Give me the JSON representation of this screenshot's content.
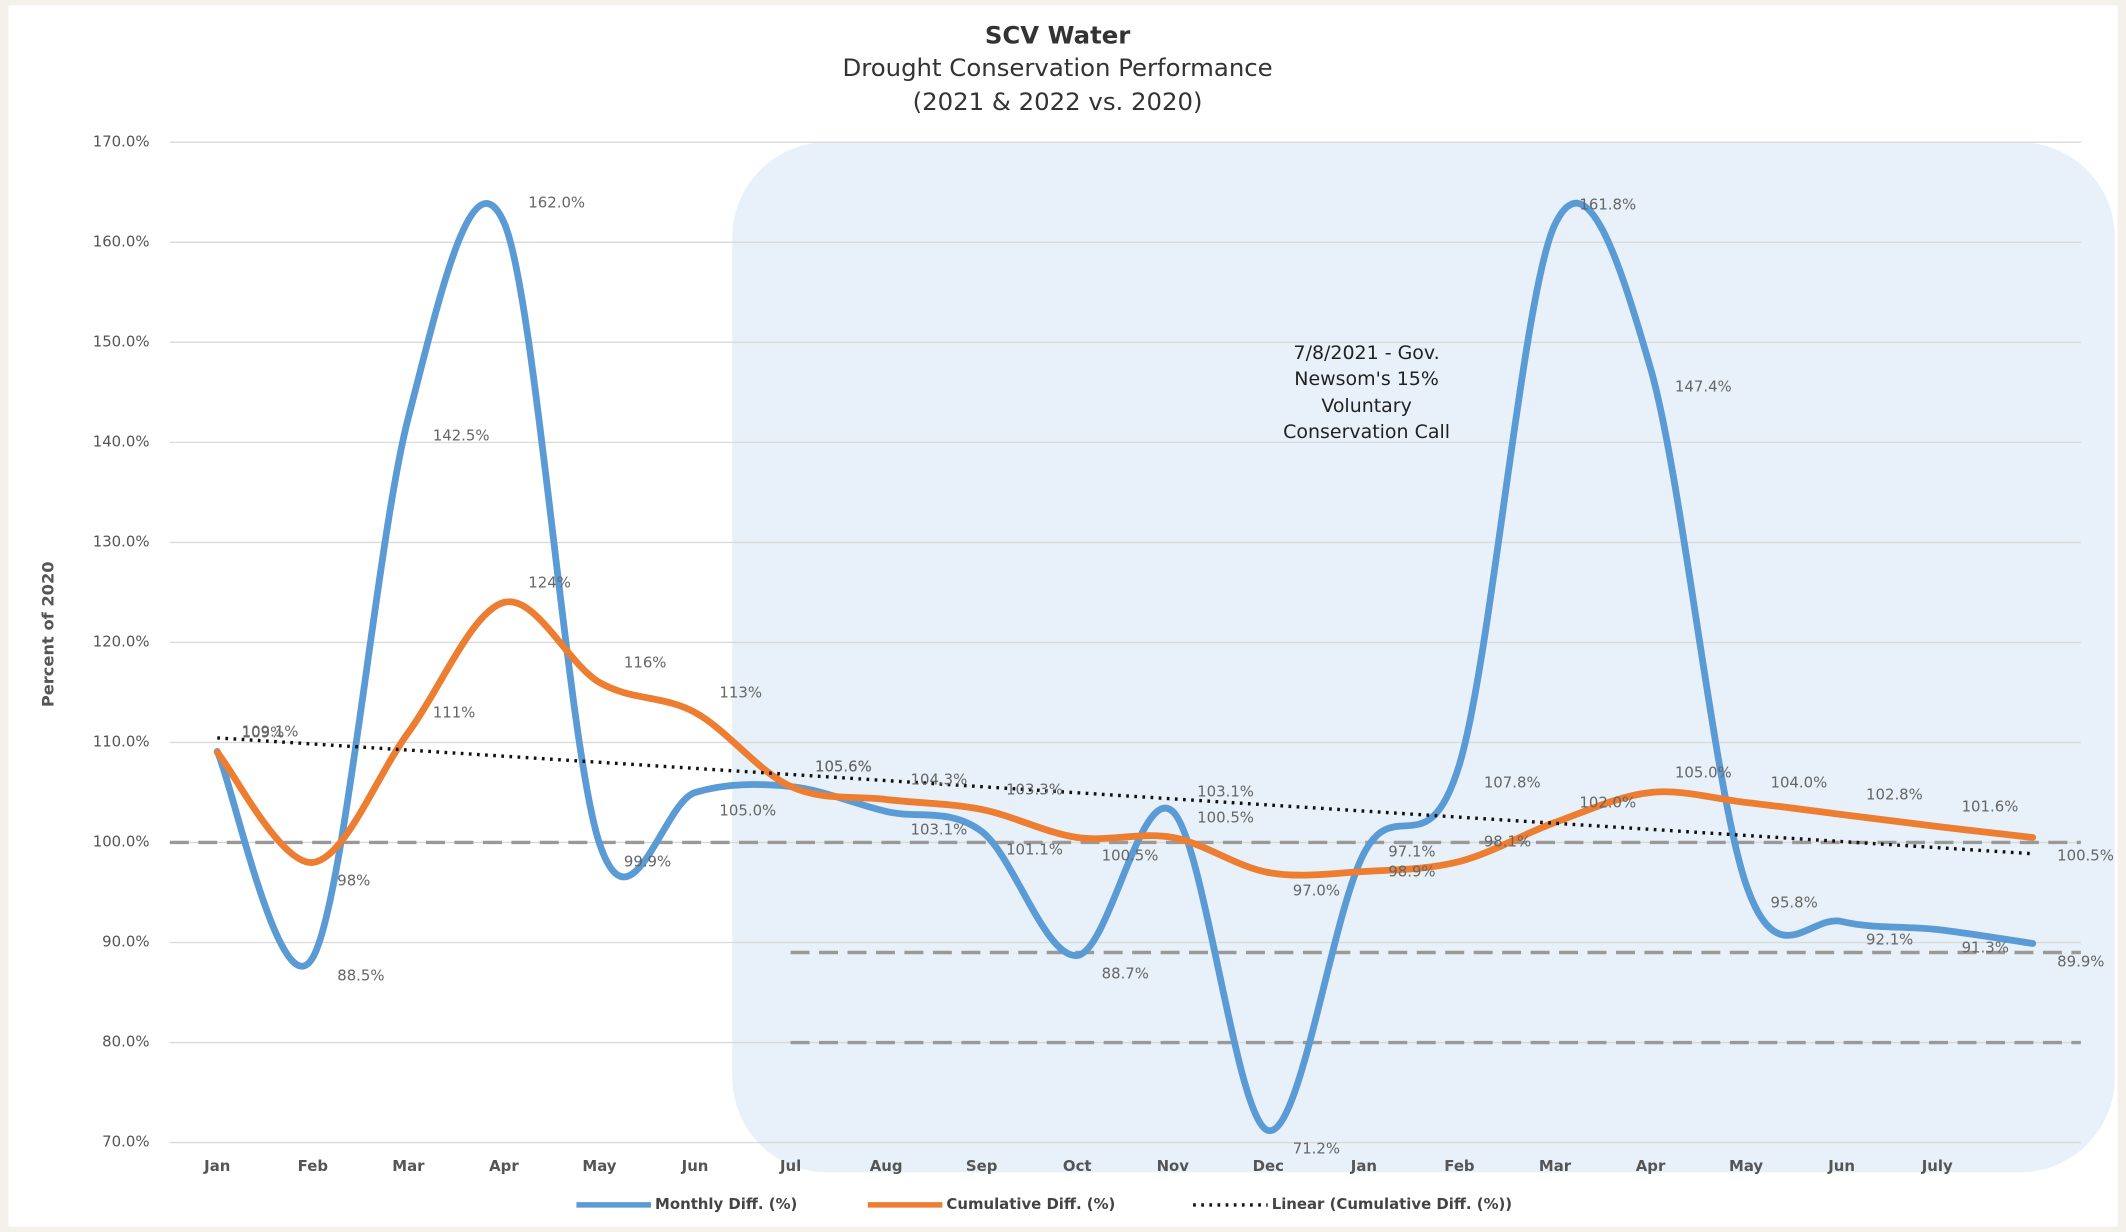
{
  "chart_data": {
    "type": "line",
    "title": "SCV Water",
    "subtitle": [
      "Drought Conservation Performance",
      "(2021 & 2022 vs. 2020)"
    ],
    "y_label": "Percent of 2020",
    "annotation": [
      "7/8/2021 - Gov.",
      "Newsom's 15%",
      "Voluntary",
      "Conservation Call"
    ],
    "categories": [
      "Jan",
      "Feb",
      "Mar",
      "Apr",
      "May",
      "Jun",
      "Jul",
      "Aug",
      "Sep",
      "Oct",
      "Nov",
      "Dec",
      "Jan",
      "Feb",
      "Mar",
      "Apr",
      "May",
      "Jun",
      "July",
      null
    ],
    "series": [
      {
        "name": "Monthly Diff. (%)",
        "color": "#5b9bd5",
        "values": [
          109.1,
          88.5,
          142.5,
          162.0,
          99.9,
          105.0,
          105.6,
          103.1,
          101.1,
          88.7,
          103.1,
          71.2,
          98.9,
          107.8,
          161.8,
          147.4,
          95.8,
          92.1,
          91.3,
          89.9
        ],
        "value_labels": [
          "109.1%",
          "88.5%",
          "142.5%",
          "162.0%",
          "99.9%",
          "105.0%",
          "105.6%",
          "103.1%",
          "101.1%",
          "88.7%",
          "103.1%",
          "71.2%",
          "98.9%",
          "107.8%",
          "161.8%",
          "147.4%",
          "95.8%",
          "92.1%",
          "91.3%",
          "89.9%"
        ]
      },
      {
        "name": "Cumulative Diff. (%)",
        "color": "#ed7d31",
        "values": [
          109,
          98,
          111,
          124,
          116,
          113,
          105.6,
          104.3,
          103.3,
          100.5,
          100.5,
          97.0,
          97.1,
          98.1,
          102.0,
          105.0,
          104.0,
          102.8,
          101.6,
          100.5
        ],
        "value_labels": [
          "109%",
          "98%",
          "111%",
          "124%",
          "116%",
          "113%",
          "105.6%",
          "104.3%",
          "103.3%",
          "100.5%",
          "100.5%",
          "97.0%",
          "97.1%",
          "98.1%",
          "102.0%",
          "105.0%",
          "104.0%",
          "102.8%",
          "101.6%",
          "100.5%"
        ]
      }
    ],
    "trendline": {
      "name": "Linear (Cumulative Diff. (%))",
      "color": "#111111",
      "of_series": 1
    },
    "reference_lines": [
      100,
      89,
      80
    ],
    "ylim": [
      70,
      170
    ],
    "yticks": [
      {
        "value": 70,
        "label": "70.0%"
      },
      {
        "value": 80,
        "label": "80.0%"
      },
      {
        "value": 90,
        "label": "90.0%"
      },
      {
        "value": 100,
        "label": "100.0%"
      },
      {
        "value": 110,
        "label": "110.0%"
      },
      {
        "value": 120,
        "label": "120.0%"
      },
      {
        "value": 130,
        "label": "130.0%"
      },
      {
        "value": 140,
        "label": "140.0%"
      },
      {
        "value": 150,
        "label": "150.0%"
      },
      {
        "value": 160,
        "label": "160.0%"
      },
      {
        "value": 170,
        "label": "170.0%"
      }
    ],
    "grid": true
  }
}
